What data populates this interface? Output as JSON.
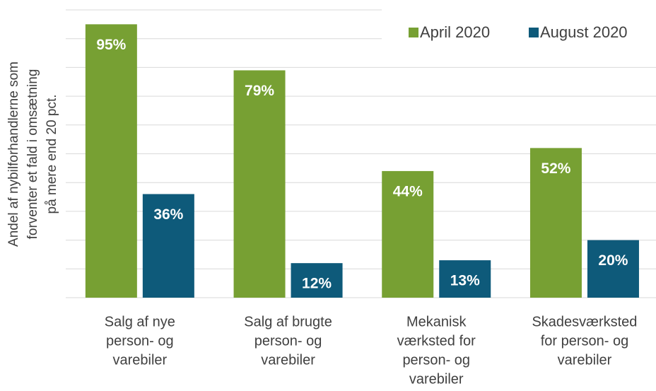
{
  "chart_data": {
    "type": "bar",
    "ylabel": [
      "Andel af nybilforhandlerne som",
      "forventer et fald i omsætning",
      "på mere end 20 pct."
    ],
    "categories": [
      [
        "Salg af nye",
        "person- og",
        "varebiler"
      ],
      [
        "Salg af brugte",
        "person- og",
        "varebiler"
      ],
      [
        "Mekanisk",
        "værksted for",
        "person- og",
        "varebiler"
      ],
      [
        "Skadesværksted",
        "for person- og",
        "varebiler"
      ]
    ],
    "series": [
      {
        "name": "April 2020",
        "color": "#77a033",
        "values": [
          95,
          79,
          44,
          52
        ],
        "value_labels": [
          "95%",
          "79%",
          "44%",
          "52%"
        ]
      },
      {
        "name": "August 2020",
        "color": "#0e5a7a",
        "values": [
          36,
          12,
          13,
          20
        ],
        "value_labels": [
          "36%",
          "12%",
          "13%",
          "20%"
        ]
      }
    ],
    "ylim": [
      0,
      100
    ],
    "yticks": [
      0,
      10,
      20,
      30,
      40,
      50,
      60,
      70,
      80,
      90,
      100
    ],
    "grid": true,
    "legend": "top-right"
  }
}
